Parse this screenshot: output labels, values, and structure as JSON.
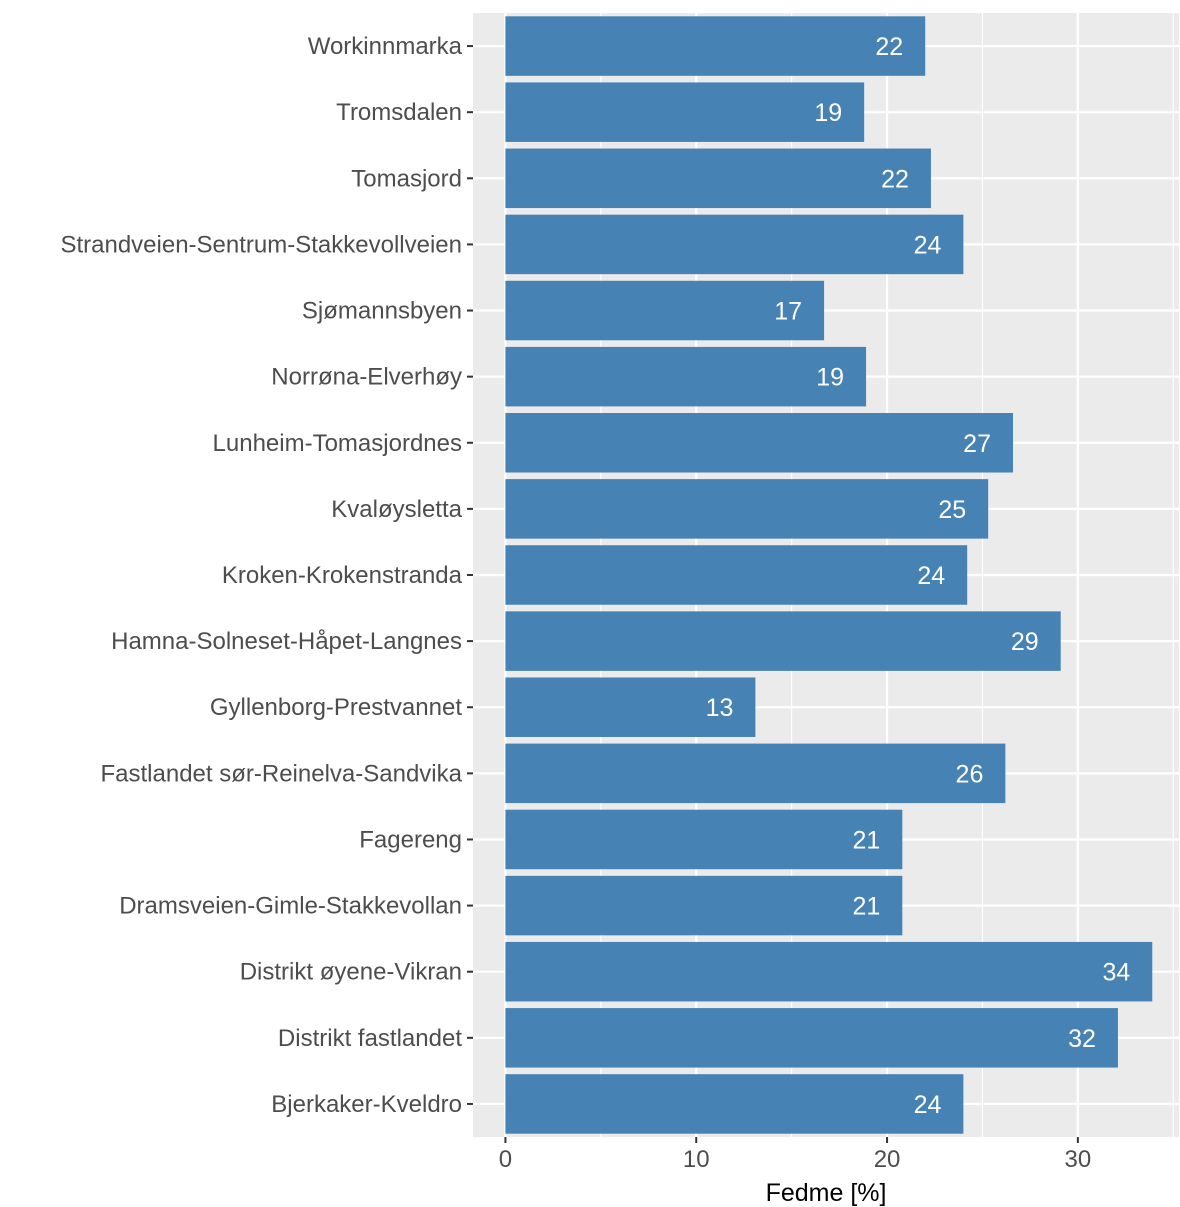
{
  "chart_data": {
    "type": "bar",
    "orientation": "horizontal",
    "categories": [
      "Workinnmarka",
      "Tromsdalen",
      "Tomasjord",
      "Strandveien-Sentrum-Stakkevollveien",
      "Sjømannsbyen",
      "Norrøna-Elverhøy",
      "Lunheim-Tomasjordnes",
      "Kvaløysletta",
      "Kroken-Krokenstranda",
      "Hamna-Solneset-Håpet-Langnes",
      "Gyllenborg-Prestvannet",
      "Fastlandet sør-Reinelva-Sandvika",
      "Fagereng",
      "Dramsveien-Gimle-Stakkevollan",
      "Distrikt øyene-Vikran",
      "Distrikt fastlandet",
      "Bjerkaker-Kveldro"
    ],
    "values": [
      22.0,
      18.8,
      22.3,
      24.0,
      16.7,
      18.9,
      26.6,
      25.3,
      24.2,
      29.1,
      13.1,
      26.2,
      20.8,
      20.8,
      33.9,
      32.1,
      24.0
    ],
    "labels": [
      "22",
      "19",
      "22",
      "24",
      "17",
      "19",
      "27",
      "25",
      "24",
      "29",
      "13",
      "26",
      "21",
      "21",
      "34",
      "32",
      "24"
    ],
    "xlabel": "Fedme [%]",
    "ylabel": "",
    "xlim": [
      -1.7,
      35.3
    ],
    "xticks": [
      0,
      10,
      20,
      30
    ],
    "xtick_labels": [
      "0",
      "10",
      "20",
      "30"
    ],
    "grid": true,
    "colors": {
      "bar": "#4682b4",
      "panel": "#ebebeb",
      "grid": "#ffffff",
      "text": "#4d4d4d",
      "value_label": "#ffffff"
    }
  }
}
